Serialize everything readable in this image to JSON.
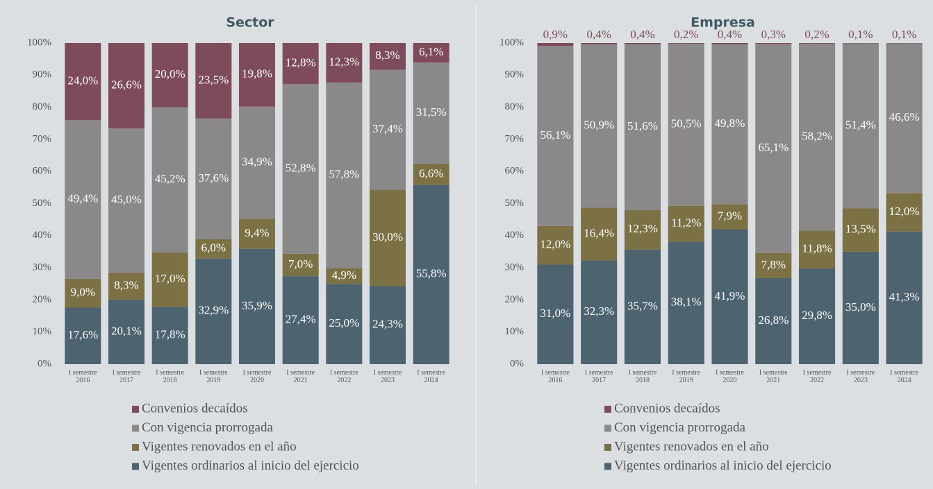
{
  "chart_data": [
    {
      "type": "stacked_bar",
      "title": "Sector",
      "categories": [
        "I semestre 2016",
        "I semestre 2017",
        "I semestre 2018",
        "I semestre 2019",
        "I semestre 2020",
        "I semestre 2021",
        "I semestre 2022",
        "I semestre 2023",
        "I semestre 2024"
      ],
      "ylim": [
        0,
        100
      ],
      "yticks": [
        {
          "value": 0,
          "label": "0%"
        },
        {
          "value": 10,
          "label": "10%"
        },
        {
          "value": 20,
          "label": "20%"
        },
        {
          "value": 30,
          "label": "30%"
        },
        {
          "value": 40,
          "label": "40%"
        },
        {
          "value": 50,
          "label": "50%"
        },
        {
          "value": 60,
          "label": "60%"
        },
        {
          "value": 70,
          "label": "70%"
        },
        {
          "value": 80,
          "label": "80%"
        },
        {
          "value": 90,
          "label": "90%"
        },
        {
          "value": 100,
          "label": "100%"
        }
      ],
      "series": [
        {
          "name": "Convenios decaídos",
          "color": "#7d4b5a",
          "values": [
            24.0,
            26.6,
            20.0,
            23.5,
            19.8,
            12.8,
            12.3,
            8.3,
            6.1
          ],
          "value_labels": [
            "24,0%",
            "26,6%",
            "20,0%",
            "23,5%",
            "19,8%",
            "12,8%",
            "12,3%",
            "8,3%",
            "6,1%"
          ]
        },
        {
          "name": "Con vigencia prorrogada",
          "color": "#8a8889",
          "values": [
            49.4,
            45.0,
            45.2,
            37.6,
            34.9,
            52.8,
            57.8,
            37.4,
            31.5
          ],
          "value_labels": [
            "49,4%",
            "45,0%",
            "45,2%",
            "37,6%",
            "34,9%",
            "52,8%",
            "57,8%",
            "37,4%",
            "31,5%"
          ]
        },
        {
          "name": "Vigentes renovados en el año",
          "color": "#7b7145",
          "values": [
            9.0,
            8.3,
            17.0,
            6.0,
            9.4,
            7.0,
            4.9,
            30.0,
            6.6
          ],
          "value_labels": [
            "9,0%",
            "8,3%",
            "17,0%",
            "6,0%",
            "9,4%",
            "7,0%",
            "4,9%",
            "30,0%",
            "6,6%"
          ]
        },
        {
          "name": "Vigentes ordinarios al inicio del ejercicio",
          "color": "#4d6470",
          "values": [
            17.6,
            20.1,
            17.8,
            32.9,
            35.9,
            27.4,
            25.0,
            24.3,
            55.8
          ],
          "value_labels": [
            "17,6%",
            "20,1%",
            "17,8%",
            "32,9%",
            "35,9%",
            "27,4%",
            "25,0%",
            "24,3%",
            "55,8%"
          ]
        }
      ]
    },
    {
      "type": "stacked_bar",
      "title": "Empresa",
      "categories": [
        "I semestre 2016",
        "I semestre 2017",
        "I semestre 2018",
        "I semestre 2019",
        "I semestre 2020",
        "I semestre 2021",
        "I semestre 2022",
        "I semestre 2023",
        "I semestre 2024"
      ],
      "ylim": [
        0,
        100
      ],
      "yticks": [
        {
          "value": 0,
          "label": "0%"
        },
        {
          "value": 10,
          "label": "10%"
        },
        {
          "value": 20,
          "label": "20%"
        },
        {
          "value": 30,
          "label": "30%"
        },
        {
          "value": 40,
          "label": "40%"
        },
        {
          "value": 50,
          "label": "50%"
        },
        {
          "value": 60,
          "label": "60%"
        },
        {
          "value": 70,
          "label": "70%"
        },
        {
          "value": 80,
          "label": "80%"
        },
        {
          "value": 90,
          "label": "90%"
        },
        {
          "value": 100,
          "label": "100%"
        }
      ],
      "series": [
        {
          "name": "Convenios decaídos",
          "color": "#7d4b5a",
          "values": [
            0.9,
            0.4,
            0.4,
            0.2,
            0.4,
            0.3,
            0.2,
            0.1,
            0.1
          ],
          "value_labels": [
            "0,9%",
            "0,4%",
            "0,4%",
            "0,2%",
            "0,4%",
            "0,3%",
            "0,2%",
            "0,1%",
            "0,1%"
          ]
        },
        {
          "name": "Con vigencia prorrogada",
          "color": "#8a8889",
          "values": [
            56.1,
            50.9,
            51.6,
            50.5,
            49.8,
            65.1,
            58.2,
            51.4,
            46.6
          ],
          "value_labels": [
            "56,1%",
            "50,9%",
            "51,6%",
            "50,5%",
            "49,8%",
            "65,1%",
            "58,2%",
            "51,4%",
            "46,6%"
          ]
        },
        {
          "name": "Vigentes renovados en el año",
          "color": "#7b7145",
          "values": [
            12.0,
            16.4,
            12.3,
            11.2,
            7.9,
            7.8,
            11.8,
            13.5,
            12.0
          ],
          "value_labels": [
            "12,0%",
            "16,4%",
            "12,3%",
            "11,2%",
            "7,9%",
            "7,8%",
            "11,8%",
            "13,5%",
            "12,0%"
          ]
        },
        {
          "name": "Vigentes ordinarios al inicio del ejercicio",
          "color": "#4d6470",
          "values": [
            31.0,
            32.3,
            35.7,
            38.1,
            41.9,
            26.8,
            29.8,
            35.0,
            41.3
          ],
          "value_labels": [
            "31,0%",
            "32,3%",
            "35,7%",
            "38,1%",
            "41,9%",
            "26,8%",
            "29,8%",
            "35,0%",
            "41,3%"
          ]
        }
      ]
    }
  ]
}
